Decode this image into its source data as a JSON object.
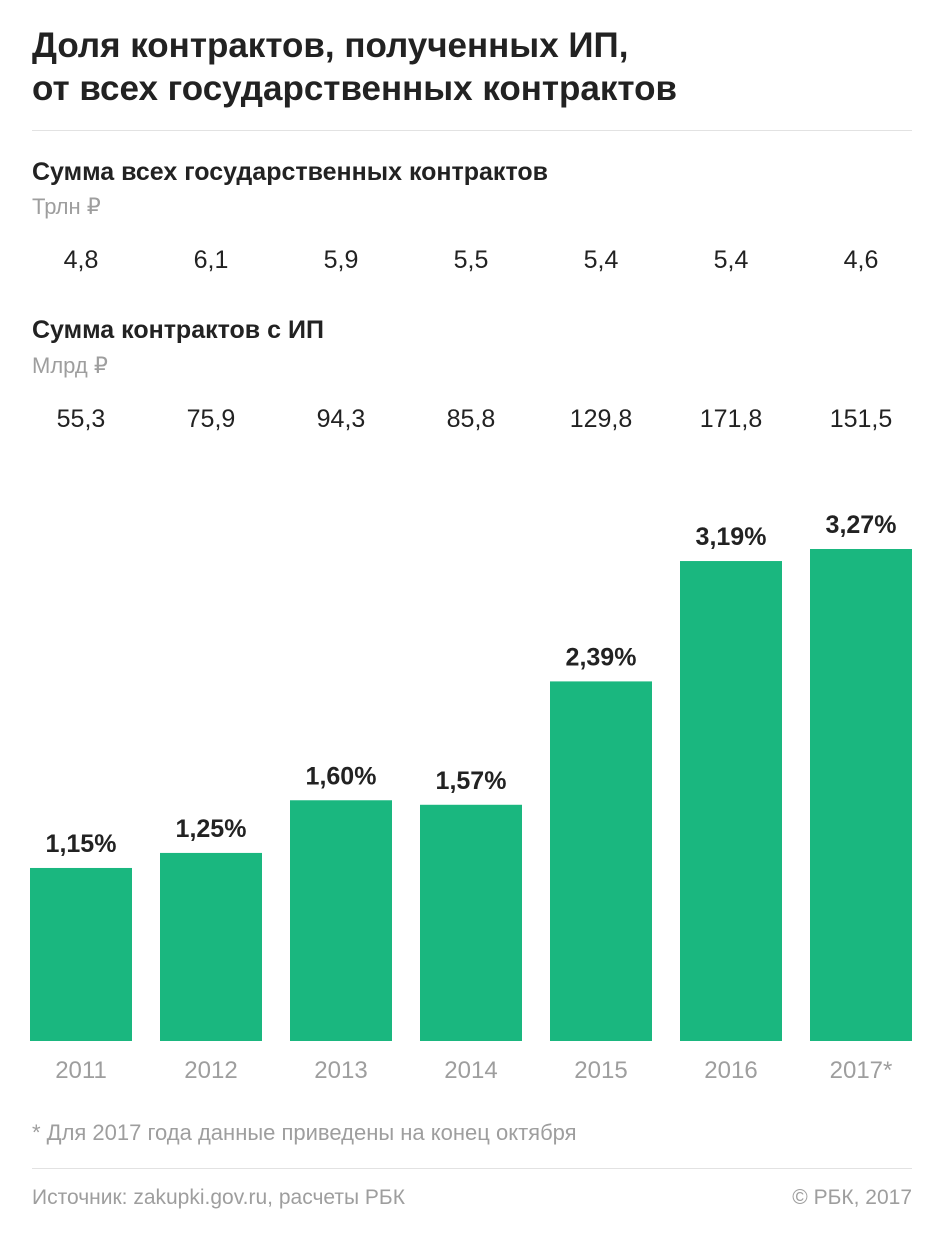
{
  "header": {
    "title_line1": "Доля контрактов, полученных ИП,",
    "title_line2": "от всех государственных контрактов"
  },
  "total_contracts": {
    "title": "Сумма всех государственных контрактов",
    "unit": "Трлн ₽",
    "values": [
      "4,8",
      "6,1",
      "5,9",
      "5,5",
      "5,4",
      "5,4",
      "4,6"
    ]
  },
  "ip_contracts": {
    "title": "Сумма контрактов с ИП",
    "unit": "Млрд ₽",
    "values": [
      "55,3",
      "75,9",
      "94,3",
      "85,8",
      "129,8",
      "171,8",
      "151,5"
    ]
  },
  "chart_data": {
    "type": "bar",
    "categories": [
      "2011",
      "2012",
      "2013",
      "2014",
      "2015",
      "2016",
      "2017*"
    ],
    "values": [
      1.15,
      1.25,
      1.6,
      1.57,
      2.39,
      3.19,
      3.27
    ],
    "data_labels": [
      "1,15%",
      "1,25%",
      "1,60%",
      "1,57%",
      "2,39%",
      "3,19%",
      "3,27%"
    ],
    "ylim": [
      0,
      3.27
    ],
    "grid": false,
    "bar_color": "#1ab77f",
    "axis_label_color": "#9e9e9e",
    "label_color": "#222222"
  },
  "footer": {
    "footnote": "* Для 2017 года данные приведены на конец октября",
    "source": "Источник: zakupki.gov.ru, расчеты РБК",
    "copyright": "© РБК, 2017"
  }
}
